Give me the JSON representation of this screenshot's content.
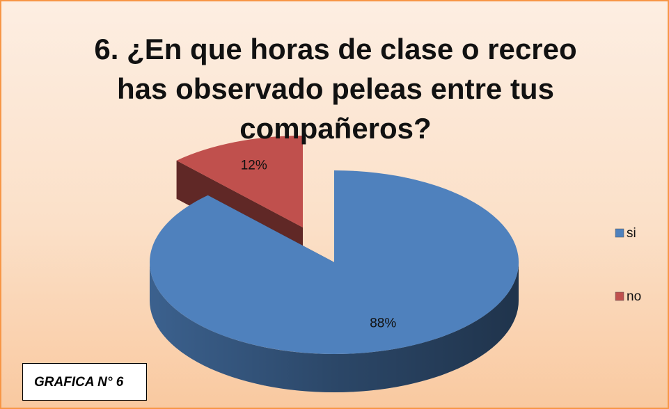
{
  "chart_data": {
    "type": "pie",
    "title": "6. ¿En que horas de clase o recreo has observado peleas entre tus compañeros?",
    "categories": [
      "si",
      "no"
    ],
    "values": [
      88,
      12
    ],
    "value_labels": [
      "88%",
      "12%"
    ],
    "colors": [
      "#4f81bd",
      "#c0504d"
    ],
    "legend": "right",
    "annotation": "GRAFICA N° 6"
  }
}
